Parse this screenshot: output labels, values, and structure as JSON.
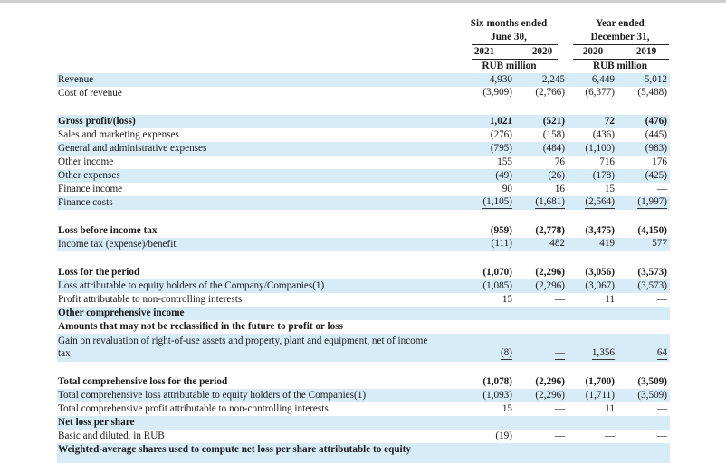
{
  "header": {
    "six_months": "Six months ended",
    "june": "June 30,",
    "year_ended": "Year ended",
    "december": "December 31,",
    "y2021": "2021",
    "y2020a": "2020",
    "y2020b": "2020",
    "y2019": "2019",
    "unit_a": "RUB million",
    "unit_b": "RUB million"
  },
  "rows": {
    "revenue": {
      "label": "Revenue",
      "v": [
        "4,930",
        "2,245",
        "6,449",
        "5,012"
      ]
    },
    "cost_of_revenue": {
      "label": "Cost of revenue",
      "v": [
        "(3,909)",
        "(2,766)",
        "(6,377)",
        "(5,488)"
      ]
    },
    "gross_profit": {
      "label": "Gross profit/(loss)",
      "v": [
        "1,021",
        "(521)",
        "72",
        "(476)"
      ]
    },
    "sales_marketing": {
      "label": "Sales and marketing expenses",
      "v": [
        "(276)",
        "(158)",
        "(436)",
        "(445)"
      ]
    },
    "g_and_a": {
      "label": "General and administrative expenses",
      "v": [
        "(795)",
        "(484)",
        "(1,100)",
        "(983)"
      ]
    },
    "other_income": {
      "label": "Other income",
      "v": [
        "155",
        "76",
        "716",
        "176"
      ]
    },
    "other_expenses": {
      "label": "Other expenses",
      "v": [
        "(49)",
        "(26)",
        "(178)",
        "(425)"
      ]
    },
    "finance_income": {
      "label": "Finance income",
      "v": [
        "90",
        "16",
        "15",
        "—"
      ]
    },
    "finance_costs": {
      "label": "Finance costs",
      "v": [
        "(1,105)",
        "(1,681)",
        "(2,564)",
        "(1,997)"
      ]
    },
    "loss_before_tax": {
      "label": "Loss before income tax",
      "v": [
        "(959)",
        "(2,778)",
        "(3,475)",
        "(4,150)"
      ]
    },
    "income_tax": {
      "label": "Income tax (expense)/benefit",
      "v": [
        "(111)",
        "482",
        "419",
        "577"
      ]
    },
    "loss_for_period": {
      "label": "Loss for the period",
      "v": [
        "(1,070)",
        "(2,296)",
        "(3,056)",
        "(3,573)"
      ]
    },
    "loss_equity_holders": {
      "label": "Loss attributable to equity holders of the Company/Companies(1)",
      "v": [
        "(1,085)",
        "(2,296)",
        "(3,067)",
        "(3,573)"
      ]
    },
    "profit_nci": {
      "label": "Profit attributable to non-controlling interests",
      "v": [
        "15",
        "—",
        "11",
        "—"
      ]
    },
    "oci_heading": {
      "label": "Other comprehensive income"
    },
    "not_reclassified_heading": {
      "label": "Amounts that may not be reclassified in the future to profit or loss"
    },
    "gain_revaluation": {
      "label": "Gain on revaluation of right-of-use assets and property, plant and equipment, net of income tax",
      "v": [
        "(8)",
        "—",
        "1,356",
        "64"
      ]
    },
    "total_comprehensive_loss": {
      "label": "Total comprehensive loss for the period",
      "v": [
        "(1,078)",
        "(2,296)",
        "(1,700)",
        "(3,509)"
      ]
    },
    "tcl_equity_holders": {
      "label": "Total comprehensive loss attributable to equity holders of the Companies(1)",
      "v": [
        "(1,093)",
        "(2,296)",
        "(1,711)",
        "(3,509)"
      ]
    },
    "tcp_nci": {
      "label": "Total comprehensive profit attributable to non-controlling interests",
      "v": [
        "15",
        "—",
        "11",
        "—"
      ]
    },
    "net_loss_per_share": {
      "label": "Net loss per share"
    },
    "basic_diluted": {
      "label": "Basic and diluted, in RUB",
      "v": [
        "(19)",
        "—",
        "—",
        "—"
      ]
    },
    "weighted_avg": {
      "label": "Weighted-average shares used to compute net loss per share attributable to equity"
    }
  }
}
